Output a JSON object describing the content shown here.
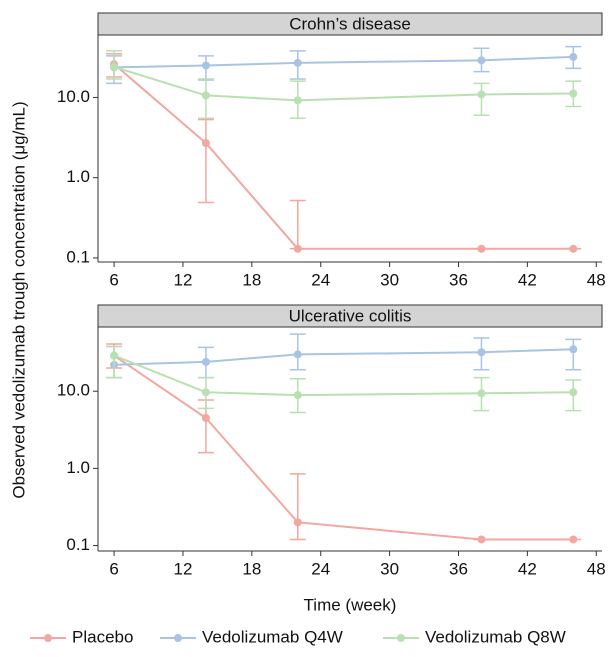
{
  "chart_data": [
    {
      "type": "line",
      "title": "Crohn’s disease",
      "log_y": true,
      "x": [
        6,
        14,
        22,
        38,
        46
      ],
      "xlim": [
        4.6,
        48.5
      ],
      "xticks": [
        6,
        12,
        18,
        24,
        30,
        36,
        42,
        48
      ],
      "ylim": [
        0.089,
        60
      ],
      "yticks": [
        0.1,
        {
          "value": 1,
          "label": "1.0"
        },
        {
          "value": 10,
          "label": "10.0"
        }
      ],
      "series": [
        {
          "name": "Placebo",
          "color": "#f4a6a0",
          "values": [
            26,
            2.7,
            0.13,
            0.13,
            0.13
          ],
          "lower": [
            18,
            0.49,
            0.13,
            0.13,
            0.13
          ],
          "upper": [
            35,
            5.3,
            0.52,
            0.13,
            0.13
          ]
        },
        {
          "name": "Vedolizumab Q4W",
          "color": "#a9c4e3",
          "values": [
            23.7,
            25,
            27,
            29,
            32
          ],
          "lower": [
            15,
            16.5,
            17,
            21,
            23
          ],
          "upper": [
            33,
            33,
            38,
            41,
            43
          ]
        },
        {
          "name": "Vedolizumab Q8W",
          "color": "#b9e0b1",
          "values": [
            24,
            10.6,
            9.2,
            10.9,
            11.2
          ],
          "lower": [
            17,
            5.5,
            5.5,
            6,
            7.7
          ],
          "upper": [
            38,
            17,
            16,
            15,
            16
          ]
        }
      ]
    },
    {
      "type": "line",
      "title": "Ulcerative colitis",
      "log_y": true,
      "x": [
        6,
        14,
        22,
        38,
        46
      ],
      "xlim": [
        4.6,
        48.5
      ],
      "xticks": [
        6,
        12,
        18,
        24,
        30,
        36,
        42,
        48
      ],
      "ylim": [
        0.085,
        68
      ],
      "yticks": [
        0.1,
        {
          "value": 1,
          "label": "1.0"
        },
        {
          "value": 10,
          "label": "10.0"
        }
      ],
      "xlabel": "Time (week)",
      "ylabel": "Observed vedolizumab trough concentration (μg/mL)",
      "series": [
        {
          "color": "#f4a6a0",
          "values": [
            29,
            4.5,
            0.2,
            0.12,
            0.12
          ],
          "lower": [
            20,
            1.6,
            0.12,
            0.12,
            0.12
          ],
          "upper": [
            41,
            7.7,
            0.85,
            0.12,
            0.12
          ]
        },
        {
          "color": "#a9c4e3",
          "values": [
            22,
            24,
            30,
            32,
            35
          ],
          "lower": [
            15,
            15,
            19,
            19,
            19
          ],
          "upper": [
            38,
            37,
            55,
            49,
            47
          ]
        },
        {
          "color": "#b9e0b1",
          "values": [
            29,
            9.7,
            8.9,
            9.4,
            9.7
          ],
          "lower": [
            15,
            6,
            5.3,
            5.6,
            5.6
          ],
          "upper": [
            38,
            15,
            14.5,
            15,
            14
          ]
        }
      ]
    }
  ]
}
